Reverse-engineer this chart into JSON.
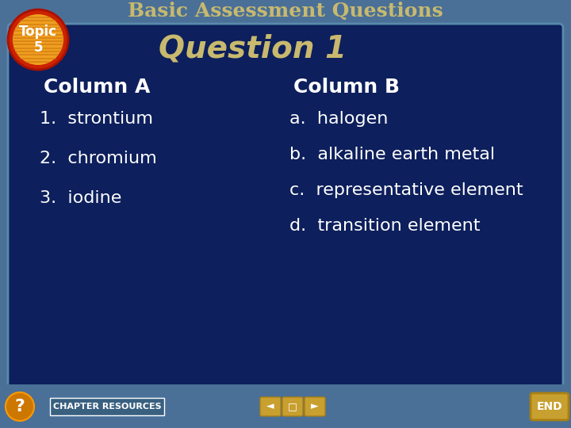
{
  "title": "Basic Assessment Questions",
  "title_color": "#C8B96E",
  "title_fontsize": 18,
  "bg_outer": "#4A7098",
  "bg_inner": "#0D1F5C",
  "bg_inner_border": "#5A8AAA",
  "question_label": "Question 1",
  "question_color": "#C8B96E",
  "question_fontsize": 28,
  "topic_circle_outer": "#CC2200",
  "topic_circle_inner": "#F0A020",
  "topic_text": "Topic\n5",
  "topic_text_color": "#FFFFFF",
  "col_a_header": "Column A",
  "col_b_header": "Column B",
  "header_color": "#FFFFFF",
  "header_fontsize": 18,
  "col_a_items": [
    "1.  strontium",
    "2.  chromium",
    "3.  iodine"
  ],
  "col_b_items": [
    "a.  halogen",
    "b.  alkaline earth metal",
    "c.  representative element",
    "d.  transition element"
  ],
  "item_color": "#FFFFFF",
  "item_fontsize": 16,
  "bottom_bar_color": "#4A7098",
  "chapter_resources_text": "CHAPTER RESOURCES",
  "chapter_resources_color": "#FFFFFF",
  "chapter_resources_fontsize": 8,
  "end_button_color": "#C8A030",
  "nav_button_color": "#C8A030"
}
